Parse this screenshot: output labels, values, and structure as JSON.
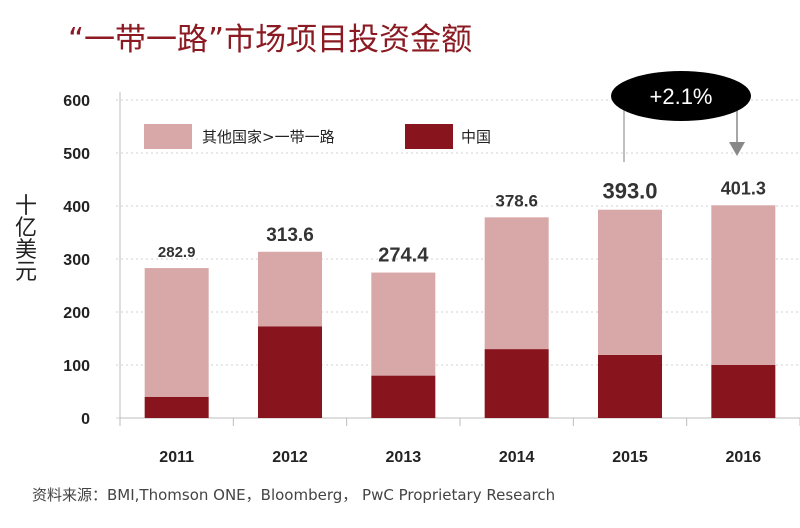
{
  "header": {
    "title": "“一带一路”市场项目投资金额"
  },
  "footer": {
    "source": "资料来源：BMI,Thomson ONE，Bloomberg， PwC Proprietary Research"
  },
  "callout": {
    "label": "+2.1%"
  },
  "colors": {
    "other": "#d8a7a7",
    "china": "#88141e",
    "title": "#8b1a22"
  },
  "chart_data": {
    "type": "bar",
    "stacked": true,
    "categories": [
      "2011",
      "2012",
      "2013",
      "2014",
      "2015",
      "2016"
    ],
    "series": [
      {
        "name": "中国",
        "values": [
          40,
          173,
          80,
          130,
          119,
          100
        ]
      },
      {
        "name": "其他国家>一带一路",
        "values": [
          242.9,
          140.6,
          194.4,
          248.6,
          274.0,
          301.3
        ]
      }
    ],
    "totals": [
      282.9,
      313.6,
      274.4,
      378.6,
      393.0,
      401.3
    ],
    "total_labels": [
      "282.9",
      "313.6",
      "274.4",
      "378.6",
      "393.0",
      "401.3"
    ],
    "yticks": [
      "0",
      "100",
      "200",
      "300",
      "400",
      "500",
      "600"
    ],
    "ylim": [
      0,
      600
    ],
    "ylabel": "十亿美元",
    "legend": {
      "position": "top-left",
      "entries": [
        "其他国家>一带一路",
        "中国"
      ]
    }
  }
}
